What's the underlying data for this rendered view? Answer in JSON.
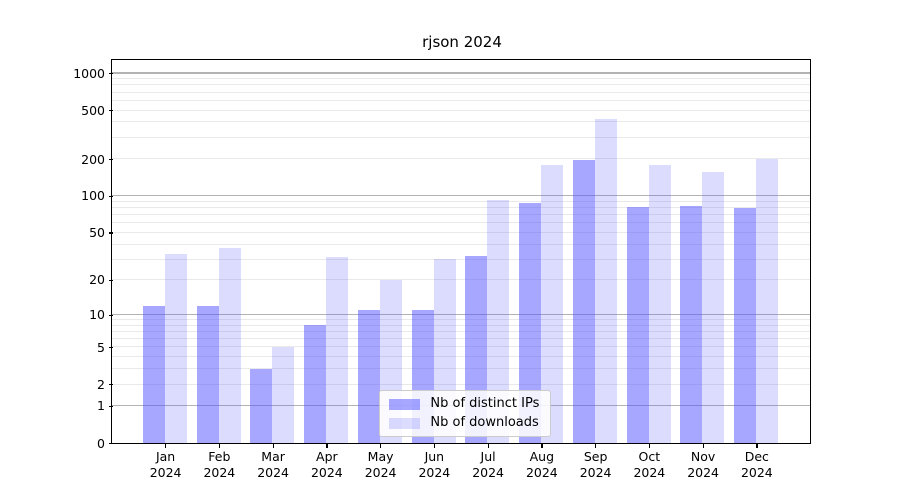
{
  "chart_data": {
    "type": "bar",
    "title": "rjson 2024",
    "year": "2024",
    "months": [
      "Jan",
      "Feb",
      "Mar",
      "Apr",
      "May",
      "Jun",
      "Jul",
      "Aug",
      "Sep",
      "Oct",
      "Nov",
      "Dec"
    ],
    "series": [
      {
        "name": "Nb of distinct IPs",
        "color": "rgba(80,80,255,0.5)",
        "color_hex": "#a7a7ff",
        "values": [
          12,
          12,
          3,
          8,
          11,
          11,
          32,
          87,
          195,
          81,
          83,
          79
        ]
      },
      {
        "name": "Nb of downloads",
        "color": "rgba(80,80,255,0.2)",
        "color_hex": "#dcdcff",
        "values": [
          33,
          37,
          5,
          31,
          20,
          30,
          92,
          180,
          425,
          178,
          155,
          198
        ]
      }
    ],
    "xlabel": "",
    "ylabel": "",
    "y_ticks": [
      0,
      1,
      2,
      5,
      10,
      20,
      50,
      100,
      200,
      500,
      1000
    ],
    "y_scale": "log10(value+1)",
    "y_axis_top_value": 1265,
    "major_gridlines": [
      1,
      10,
      100,
      1000
    ],
    "minor_gridlines": [
      2,
      3,
      4,
      5,
      6,
      7,
      8,
      9,
      20,
      30,
      40,
      50,
      60,
      70,
      80,
      90,
      200,
      300,
      400,
      500,
      600,
      700,
      800,
      900
    ],
    "legend": {
      "entries": [
        "Nb of distinct IPs",
        "Nb of downloads"
      ],
      "position": "lower center"
    },
    "colors": {
      "background": "#ffffff",
      "axis": "#000000",
      "grid_major": "#b3b3b3",
      "grid_minor": "#e9e9e9"
    }
  }
}
